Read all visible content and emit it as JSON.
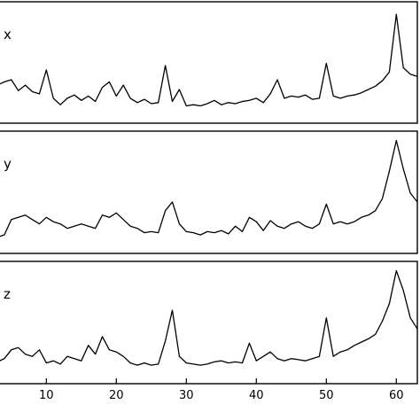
{
  "chart_data": {
    "type": "line",
    "xlim": [
      3,
      63
    ],
    "xticks": [
      10,
      20,
      30,
      40,
      50,
      60
    ],
    "grid": false,
    "legend": "none",
    "x": [
      3,
      4,
      5,
      6,
      7,
      8,
      9,
      10,
      11,
      12,
      13,
      14,
      15,
      16,
      17,
      18,
      19,
      20,
      21,
      22,
      23,
      24,
      25,
      26,
      27,
      28,
      29,
      30,
      31,
      32,
      33,
      34,
      35,
      36,
      37,
      38,
      39,
      40,
      41,
      42,
      43,
      44,
      45,
      46,
      47,
      48,
      49,
      50,
      51,
      52,
      53,
      54,
      55,
      56,
      57,
      58,
      59,
      60,
      61,
      62,
      63
    ],
    "panels": [
      {
        "label": "x",
        "ylim": [
          0,
          1
        ],
        "y": [
          0.3,
          0.33,
          0.35,
          0.25,
          0.3,
          0.24,
          0.22,
          0.44,
          0.18,
          0.12,
          0.18,
          0.21,
          0.16,
          0.2,
          0.15,
          0.28,
          0.33,
          0.2,
          0.3,
          0.18,
          0.14,
          0.17,
          0.13,
          0.14,
          0.48,
          0.15,
          0.26,
          0.11,
          0.12,
          0.11,
          0.13,
          0.16,
          0.12,
          0.14,
          0.13,
          0.15,
          0.16,
          0.18,
          0.14,
          0.22,
          0.35,
          0.18,
          0.2,
          0.19,
          0.21,
          0.17,
          0.18,
          0.5,
          0.2,
          0.18,
          0.2,
          0.21,
          0.23,
          0.26,
          0.29,
          0.34,
          0.42,
          0.95,
          0.46,
          0.4,
          0.38
        ]
      },
      {
        "label": "y",
        "ylim": [
          0,
          1
        ],
        "y": [
          0.1,
          0.12,
          0.26,
          0.28,
          0.3,
          0.26,
          0.22,
          0.28,
          0.24,
          0.22,
          0.18,
          0.2,
          0.22,
          0.2,
          0.18,
          0.3,
          0.28,
          0.32,
          0.26,
          0.2,
          0.18,
          0.14,
          0.15,
          0.14,
          0.34,
          0.42,
          0.22,
          0.15,
          0.14,
          0.12,
          0.15,
          0.14,
          0.16,
          0.13,
          0.2,
          0.15,
          0.28,
          0.24,
          0.16,
          0.25,
          0.2,
          0.18,
          0.22,
          0.24,
          0.2,
          0.18,
          0.22,
          0.4,
          0.22,
          0.24,
          0.22,
          0.24,
          0.28,
          0.3,
          0.34,
          0.45,
          0.7,
          0.98,
          0.72,
          0.5,
          0.42
        ]
      },
      {
        "label": "z",
        "ylim": [
          0,
          1
        ],
        "y": [
          0.15,
          0.18,
          0.26,
          0.28,
          0.22,
          0.2,
          0.26,
          0.14,
          0.16,
          0.13,
          0.2,
          0.18,
          0.16,
          0.3,
          0.22,
          0.38,
          0.26,
          0.24,
          0.2,
          0.14,
          0.12,
          0.14,
          0.12,
          0.13,
          0.34,
          0.62,
          0.2,
          0.14,
          0.13,
          0.12,
          0.13,
          0.15,
          0.16,
          0.14,
          0.15,
          0.14,
          0.32,
          0.16,
          0.2,
          0.24,
          0.18,
          0.16,
          0.18,
          0.17,
          0.16,
          0.18,
          0.2,
          0.55,
          0.2,
          0.24,
          0.26,
          0.3,
          0.33,
          0.36,
          0.4,
          0.52,
          0.68,
          0.98,
          0.8,
          0.55,
          0.45
        ]
      }
    ]
  }
}
